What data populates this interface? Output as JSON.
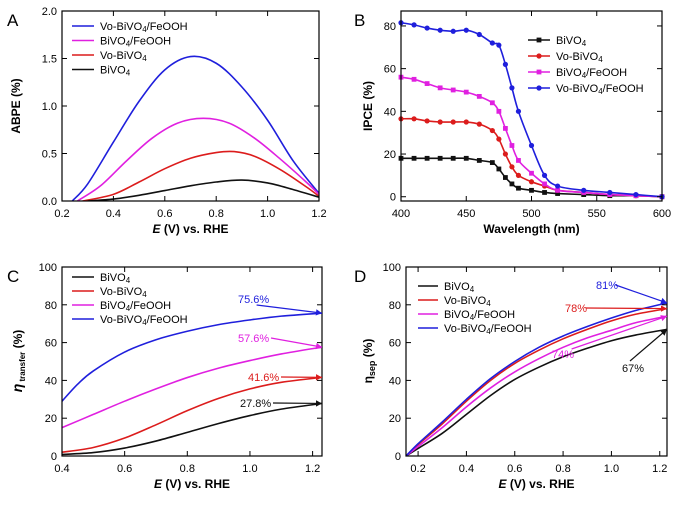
{
  "chart_data": [
    {
      "panel": "A",
      "type": "line",
      "xlabel_italic": "E",
      "xlabel_rest": " (V) vs. RHE",
      "ylabel": "ABPE (%)",
      "xlim": [
        0.2,
        1.2
      ],
      "ylim": [
        0.0,
        2.0
      ],
      "xticks": [
        0.2,
        0.4,
        0.6,
        0.8,
        1.0,
        1.2
      ],
      "xtick_labels": [
        "0.2",
        "0.4",
        "0.6",
        "0.8",
        "1.0",
        "1.2"
      ],
      "yticks": [
        0.0,
        0.5,
        1.0,
        1.5,
        2.0
      ],
      "ytick_labels": [
        "0.0",
        "0.5",
        "1.0",
        "1.5",
        "2.0"
      ],
      "legend_position": "top-left",
      "series": [
        {
          "name": "Vo-BiVO4/FeOOH",
          "label_main": "Vo-BiVO",
          "label_sub": "4",
          "label_tail": "/FeOOH",
          "color": "#1f1fdc",
          "x": [
            0.24,
            0.3,
            0.4,
            0.5,
            0.6,
            0.7,
            0.8,
            0.9,
            1.0,
            1.1,
            1.2
          ],
          "y": [
            0.0,
            0.18,
            0.62,
            1.05,
            1.38,
            1.52,
            1.45,
            1.2,
            0.85,
            0.42,
            0.08
          ]
        },
        {
          "name": "BiVO4/FeOOH",
          "label_main": "BiVO",
          "label_sub": "4",
          "label_tail": "/FeOOH",
          "color": "#e020e0",
          "x": [
            0.26,
            0.35,
            0.45,
            0.55,
            0.65,
            0.75,
            0.85,
            0.95,
            1.05,
            1.15,
            1.2
          ],
          "y": [
            0.0,
            0.16,
            0.42,
            0.66,
            0.82,
            0.87,
            0.82,
            0.66,
            0.44,
            0.2,
            0.07
          ]
        },
        {
          "name": "Vo-BiVO4",
          "label_main": "Vo-BiVO",
          "label_sub": "4",
          "label_tail": "",
          "color": "#dc1c1c",
          "x": [
            0.28,
            0.4,
            0.5,
            0.6,
            0.7,
            0.8,
            0.87,
            0.95,
            1.05,
            1.15,
            1.2
          ],
          "y": [
            0.0,
            0.07,
            0.2,
            0.34,
            0.45,
            0.51,
            0.52,
            0.47,
            0.33,
            0.15,
            0.05
          ]
        },
        {
          "name": "BiVO4",
          "label_main": "BiVO",
          "label_sub": "4",
          "label_tail": "",
          "color": "#111111",
          "x": [
            0.3,
            0.4,
            0.5,
            0.6,
            0.7,
            0.8,
            0.9,
            1.0,
            1.1,
            1.2
          ],
          "y": [
            0.0,
            0.02,
            0.06,
            0.11,
            0.16,
            0.2,
            0.22,
            0.19,
            0.12,
            0.04
          ]
        }
      ]
    },
    {
      "panel": "B",
      "type": "line",
      "xlabel": "Wavelength (nm)",
      "ylabel": "IPCE (%)",
      "xlim": [
        400,
        600
      ],
      "ylim": [
        -2,
        87
      ],
      "xticks": [
        400,
        450,
        500,
        550,
        600
      ],
      "xtick_labels": [
        "400",
        "450",
        "500",
        "550",
        "600"
      ],
      "yticks": [
        0,
        20,
        40,
        60,
        80
      ],
      "ytick_labels": [
        "0",
        "20",
        "40",
        "60",
        "80"
      ],
      "legend_position": "right",
      "series": [
        {
          "name": "BiVO4",
          "label_main": "BiVO",
          "label_sub": "4",
          "label_tail": "",
          "color": "#111111",
          "marker": "square",
          "x": [
            400,
            410,
            420,
            430,
            440,
            450,
            460,
            470,
            475,
            480,
            485,
            490,
            500,
            510,
            520,
            540,
            560,
            580,
            600
          ],
          "y": [
            18,
            18,
            18,
            18,
            18,
            18,
            17,
            16,
            13,
            9,
            6,
            4,
            3,
            2,
            1.5,
            1,
            0.5,
            0.5,
            0
          ]
        },
        {
          "name": "Vo-BiVO4",
          "label_main": "Vo-BiVO",
          "label_sub": "4",
          "label_tail": "",
          "color": "#dc1c1c",
          "marker": "circle",
          "x": [
            400,
            410,
            420,
            430,
            440,
            450,
            460,
            470,
            475,
            480,
            485,
            490,
            500,
            510,
            520,
            540,
            560,
            580,
            600
          ],
          "y": [
            36.5,
            36.5,
            35.5,
            35,
            35,
            35,
            34,
            31,
            27,
            20,
            14,
            10,
            7,
            5,
            3,
            2,
            1,
            0.5,
            0
          ]
        },
        {
          "name": "BiVO4/FeOOH",
          "label_main": "BiVO",
          "label_sub": "4",
          "label_tail": "/FeOOH",
          "color": "#e020e0",
          "marker": "square",
          "x": [
            400,
            410,
            420,
            430,
            440,
            450,
            460,
            470,
            475,
            480,
            485,
            490,
            500,
            510,
            520,
            540,
            560,
            580,
            600
          ],
          "y": [
            56,
            55,
            53,
            51,
            50,
            49,
            47,
            44,
            40,
            32,
            24,
            17,
            11,
            6,
            3,
            2,
            1,
            0.5,
            0
          ]
        },
        {
          "name": "Vo-BiVO4/FeOOH",
          "label_main": "Vo-BiVO",
          "label_sub": "4",
          "label_tail": "/FeOOH",
          "color": "#1f1fdc",
          "marker": "circle",
          "x": [
            400,
            410,
            420,
            430,
            440,
            450,
            460,
            470,
            475,
            480,
            485,
            490,
            500,
            510,
            520,
            540,
            560,
            580,
            600
          ],
          "y": [
            81.5,
            80.5,
            79,
            78,
            77.5,
            78,
            76,
            72,
            71,
            62,
            51,
            40,
            24,
            10,
            5,
            3,
            2,
            1,
            0
          ]
        }
      ]
    },
    {
      "panel": "C",
      "type": "line",
      "xlabel_italic": "E",
      "xlabel_rest": " (V) vs. RHE",
      "ylabel_italic": "η",
      "ylabel_sub": " transfer",
      "ylabel_rest": " (%)",
      "xlim": [
        0.4,
        1.23
      ],
      "ylim": [
        0,
        100
      ],
      "xticks": [
        0.4,
        0.6,
        0.8,
        1.0,
        1.2
      ],
      "xtick_labels": [
        "0.4",
        "0.6",
        "0.8",
        "1.0",
        "1.2"
      ],
      "yticks": [
        0,
        20,
        40,
        60,
        80,
        100
      ],
      "ytick_labels": [
        "0",
        "20",
        "40",
        "60",
        "80",
        "100"
      ],
      "legend_position": "top-left",
      "series": [
        {
          "name": "BiVO4",
          "label_main": "BiVO",
          "label_sub": "4",
          "label_tail": "",
          "color": "#111111",
          "x": [
            0.4,
            0.5,
            0.6,
            0.7,
            0.8,
            0.9,
            1.0,
            1.1,
            1.23
          ],
          "y": [
            0.8,
            1.8,
            4.2,
            7.9,
            12.5,
            17.2,
            21.4,
            24.8,
            27.8
          ]
        },
        {
          "name": "Vo-BiVO4",
          "label_main": "Vo-BiVO",
          "label_sub": "4",
          "label_tail": "",
          "color": "#dc1c1c",
          "x": [
            0.4,
            0.5,
            0.6,
            0.7,
            0.8,
            0.9,
            1.0,
            1.1,
            1.23
          ],
          "y": [
            2,
            4.5,
            9.5,
            16.5,
            24,
            30.5,
            35.5,
            39,
            41.6
          ]
        },
        {
          "name": "BiVO4/FeOOH",
          "label_main": "BiVO",
          "label_sub": "4",
          "label_tail": "/FeOOH",
          "color": "#e020e0",
          "x": [
            0.4,
            0.5,
            0.6,
            0.7,
            0.8,
            0.9,
            1.0,
            1.1,
            1.23
          ],
          "y": [
            15,
            22,
            29,
            35.5,
            41.5,
            46.5,
            50.5,
            54,
            57.6
          ]
        },
        {
          "name": "Vo-BiVO4/FeOOH",
          "label_main": "Vo-BiVO",
          "label_sub": "4",
          "label_tail": "/FeOOH",
          "color": "#1f1fdc",
          "x": [
            0.4,
            0.45,
            0.5,
            0.6,
            0.7,
            0.8,
            0.9,
            1.0,
            1.1,
            1.23
          ],
          "y": [
            29,
            38,
            45,
            55,
            61.5,
            66,
            69.5,
            72,
            74,
            75.6
          ]
        }
      ],
      "annotations": [
        {
          "text": "75.6%",
          "color": "#1f1fdc",
          "series_index": 3
        },
        {
          "text": "57.6%",
          "color": "#e020e0",
          "series_index": 2
        },
        {
          "text": "41.6%",
          "color": "#dc1c1c",
          "series_index": 1
        },
        {
          "text": "27.8%",
          "color": "#111111",
          "series_index": 0
        }
      ]
    },
    {
      "panel": "D",
      "type": "line",
      "xlabel_italic": "E",
      "xlabel_rest": " (V) vs. RHE",
      "ylabel_main": "η",
      "ylabel_sub": "sep",
      "ylabel_rest": " (%)",
      "xlim": [
        0.15,
        1.23
      ],
      "ylim": [
        0,
        100
      ],
      "xticks": [
        0.2,
        0.4,
        0.6,
        0.8,
        1.0,
        1.2
      ],
      "xtick_labels": [
        "0.2",
        "0.4",
        "0.6",
        "0.8",
        "1.0",
        "1.2"
      ],
      "yticks": [
        0,
        20,
        40,
        60,
        80,
        100
      ],
      "ytick_labels": [
        "0",
        "20",
        "40",
        "60",
        "80",
        "100"
      ],
      "legend_position": "top-left",
      "series": [
        {
          "name": "BiVO4",
          "label_main": "BiVO",
          "label_sub": "4",
          "label_tail": "",
          "color": "#111111",
          "x": [
            0.15,
            0.2,
            0.3,
            0.4,
            0.5,
            0.6,
            0.7,
            0.8,
            0.9,
            1.0,
            1.1,
            1.23
          ],
          "y": [
            0,
            4,
            12,
            22,
            32,
            40.5,
            47,
            52.5,
            57,
            61,
            64,
            67
          ]
        },
        {
          "name": "Vo-BiVO4",
          "label_main": "Vo-BiVO",
          "label_sub": "4",
          "label_tail": "",
          "color": "#dc1c1c",
          "x": [
            0.15,
            0.2,
            0.3,
            0.4,
            0.5,
            0.6,
            0.7,
            0.8,
            0.9,
            1.0,
            1.1,
            1.23
          ],
          "y": [
            0,
            6,
            17,
            29,
            40,
            49,
            56,
            62,
            67,
            71.5,
            75,
            78
          ]
        },
        {
          "name": "BiVO4/FeOOH",
          "label_main": "BiVO",
          "label_sub": "4",
          "label_tail": "/FeOOH",
          "color": "#e020e0",
          "x": [
            0.15,
            0.2,
            0.3,
            0.4,
            0.5,
            0.6,
            0.7,
            0.8,
            0.9,
            1.0,
            1.1,
            1.23
          ],
          "y": [
            0,
            5,
            15,
            26,
            36,
            44.5,
            51.5,
            57.5,
            62.5,
            66.5,
            70.5,
            74
          ]
        },
        {
          "name": "Vo-BiVO4/FeOOH",
          "label_main": "Vo-BiVO",
          "label_sub": "4",
          "label_tail": "/FeOOH",
          "color": "#1f1fdc",
          "x": [
            0.15,
            0.2,
            0.3,
            0.4,
            0.5,
            0.6,
            0.7,
            0.8,
            0.9,
            1.0,
            1.1,
            1.23
          ],
          "y": [
            0,
            6.5,
            18,
            30,
            41,
            50,
            57.5,
            63.5,
            68.5,
            73,
            77,
            81
          ]
        }
      ],
      "annotations": [
        {
          "text": "81%",
          "color": "#1f1fdc",
          "series_index": 3
        },
        {
          "text": "78%",
          "color": "#dc1c1c",
          "series_index": 1
        },
        {
          "text": "74%",
          "color": "#e020e0",
          "series_index": 2
        },
        {
          "text": "67%",
          "color": "#111111",
          "series_index": 0
        }
      ]
    }
  ]
}
